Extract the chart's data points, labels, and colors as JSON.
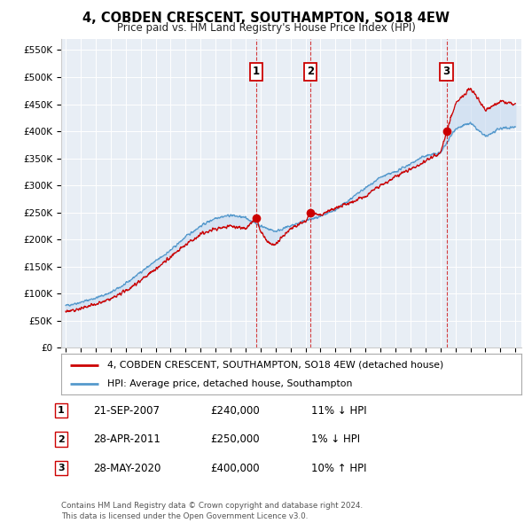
{
  "title": "4, COBDEN CRESCENT, SOUTHAMPTON, SO18 4EW",
  "subtitle": "Price paid vs. HM Land Registry's House Price Index (HPI)",
  "ylim": [
    0,
    570000
  ],
  "yticks": [
    0,
    50000,
    100000,
    150000,
    200000,
    250000,
    300000,
    350000,
    400000,
    450000,
    500000,
    550000
  ],
  "ytick_labels": [
    "£0",
    "£50K",
    "£100K",
    "£150K",
    "£200K",
    "£250K",
    "£300K",
    "£350K",
    "£400K",
    "£450K",
    "£500K",
    "£550K"
  ],
  "background_color": "#ffffff",
  "plot_bg_color": "#e8eef5",
  "hpi_color": "#5599cc",
  "price_color": "#cc0000",
  "shade_color": "#c8daf0",
  "transactions": [
    {
      "label": "1",
      "date_x": 2007.72,
      "price": 240000,
      "pct": "11%",
      "dir": "↓",
      "date_str": "21-SEP-2007"
    },
    {
      "label": "2",
      "date_x": 2011.32,
      "price": 250000,
      "pct": "1%",
      "dir": "↓",
      "date_str": "28-APR-2011"
    },
    {
      "label": "3",
      "date_x": 2020.41,
      "price": 400000,
      "pct": "10%",
      "dir": "↑",
      "date_str": "28-MAY-2020"
    }
  ],
  "legend_line1": "4, COBDEN CRESCENT, SOUTHAMPTON, SO18 4EW (detached house)",
  "legend_line2": "HPI: Average price, detached house, Southampton",
  "footer": "Contains HM Land Registry data © Crown copyright and database right 2024.\nThis data is licensed under the Open Government Licence v3.0.",
  "xlim_start": 1994.7,
  "xlim_end": 2025.4,
  "hpi_anchors_x": [
    1995,
    1996,
    1997,
    1998,
    1999,
    2000,
    2001,
    2002,
    2003,
    2004,
    2005,
    2006,
    2007,
    2008,
    2009,
    2010,
    2011,
    2012,
    2013,
    2014,
    2015,
    2016,
    2017,
    2018,
    2019,
    2020,
    2021,
    2022,
    2023,
    2024,
    2025
  ],
  "hpi_anchors_y": [
    78000,
    84000,
    92000,
    102000,
    118000,
    140000,
    160000,
    180000,
    205000,
    225000,
    240000,
    245000,
    240000,
    225000,
    215000,
    225000,
    235000,
    242000,
    255000,
    275000,
    295000,
    315000,
    325000,
    340000,
    355000,
    360000,
    405000,
    415000,
    390000,
    405000,
    408000
  ],
  "price_anchors_x": [
    1995,
    1996,
    1997,
    1998,
    1999,
    2000,
    2001,
    2002,
    2003,
    2004,
    2005,
    2006,
    2007,
    2007.72,
    2008,
    2008.5,
    2009,
    2010,
    2011,
    2011.32,
    2012,
    2013,
    2014,
    2015,
    2016,
    2017,
    2018,
    2019,
    2020,
    2020.41,
    2021,
    2022,
    2022.5,
    2023,
    2024,
    2025
  ],
  "price_anchors_y": [
    68000,
    72000,
    80000,
    90000,
    105000,
    125000,
    145000,
    168000,
    190000,
    210000,
    220000,
    225000,
    220000,
    240000,
    215000,
    195000,
    190000,
    220000,
    235000,
    250000,
    245000,
    258000,
    268000,
    280000,
    300000,
    315000,
    330000,
    345000,
    360000,
    400000,
    450000,
    480000,
    460000,
    440000,
    455000,
    450000
  ]
}
